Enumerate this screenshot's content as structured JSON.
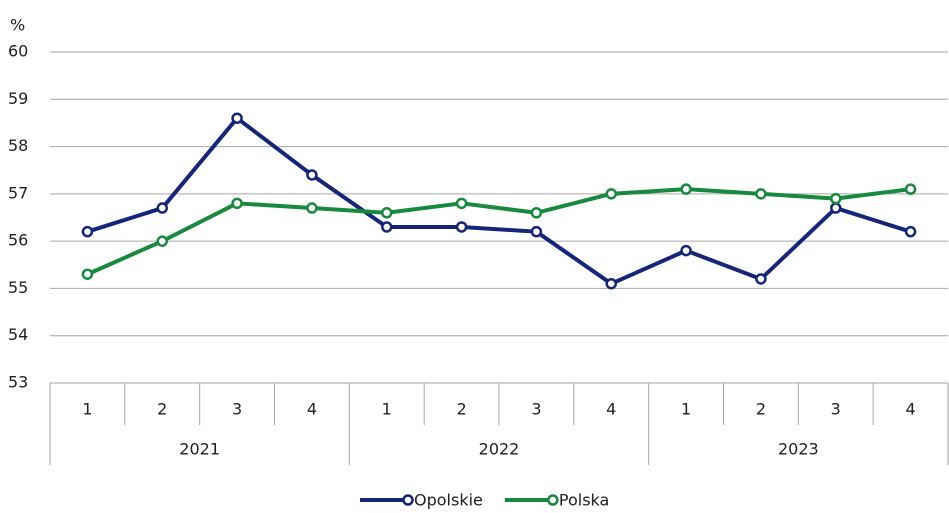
{
  "chart_data": {
    "type": "line",
    "y_label": "%",
    "categories": [
      "1",
      "2",
      "3",
      "4",
      "1",
      "2",
      "3",
      "4",
      "1",
      "2",
      "3",
      "4"
    ],
    "groups": [
      "2021",
      "2022",
      "2023"
    ],
    "series": [
      {
        "name": "Opolskie",
        "color": "#15257a",
        "values": [
          56.2,
          56.7,
          58.6,
          57.4,
          56.3,
          56.3,
          56.2,
          55.1,
          55.8,
          55.2,
          56.7,
          56.2
        ]
      },
      {
        "name": "Polska",
        "color": "#178a3e",
        "values": [
          55.3,
          56.0,
          56.8,
          56.7,
          56.6,
          56.8,
          56.6,
          57.0,
          57.1,
          57.0,
          56.9,
          57.1
        ]
      }
    ],
    "ylim": [
      53,
      60
    ],
    "yticks": [
      53,
      54,
      55,
      56,
      57,
      58,
      59,
      60
    ],
    "grid": true,
    "legend": "bottom"
  }
}
